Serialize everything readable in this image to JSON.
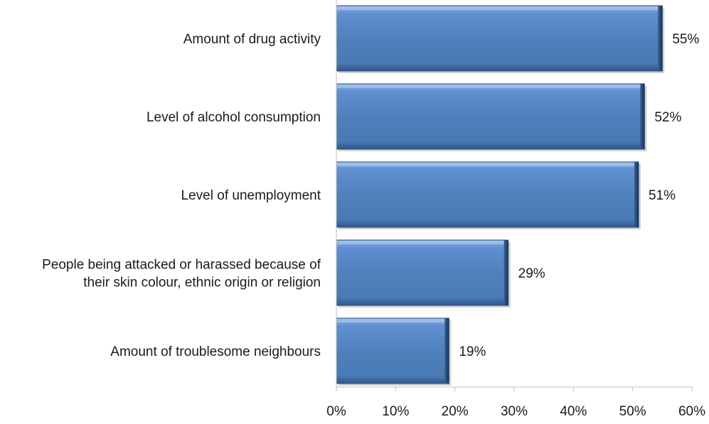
{
  "chart_data": {
    "type": "bar",
    "orientation": "horizontal",
    "title": "",
    "xlabel": "",
    "ylabel": "",
    "categories": [
      "Amount of drug activity",
      "Level of alcohol consumption",
      "Level of unemployment",
      "People being attacked or harassed because of their skin colour, ethnic origin or religion",
      "Amount of troublesome neighbours"
    ],
    "category_lines": [
      [
        "Amount of drug activity"
      ],
      [
        "Level of alcohol consumption"
      ],
      [
        "Level of unemployment"
      ],
      [
        "People being attacked or harassed because of",
        "their skin colour, ethnic origin or religion"
      ],
      [
        "Amount of troublesome neighbours"
      ]
    ],
    "values": [
      55,
      52,
      51,
      29,
      19
    ],
    "value_labels": [
      "55%",
      "52%",
      "51%",
      "29%",
      "19%"
    ],
    "xlim": [
      0,
      60
    ],
    "ticks": [
      0,
      10,
      20,
      30,
      40,
      50,
      60
    ],
    "tick_labels": [
      "0%",
      "10%",
      "20%",
      "30%",
      "40%",
      "50%",
      "60%"
    ],
    "grid": false,
    "legend": "none",
    "bar_color": "#4f81bd"
  }
}
